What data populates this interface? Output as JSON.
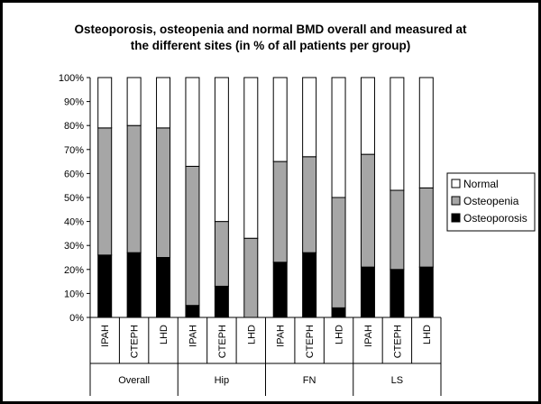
{
  "chart_data": {
    "type": "bar",
    "stacked": true,
    "percent": true,
    "title_line1": "Osteoporosis, osteopenia and normal BMD overall and measured at",
    "title_line2": "the different sites (in % of all patients per group)",
    "ylim": [
      0,
      100
    ],
    "yticks": [
      "0%",
      "10%",
      "20%",
      "30%",
      "40%",
      "50%",
      "60%",
      "70%",
      "80%",
      "90%",
      "100%"
    ],
    "groups": [
      {
        "name": "Overall",
        "categories": [
          "IPAH",
          "CTEPH",
          "LHD"
        ]
      },
      {
        "name": "Hip",
        "categories": [
          "IPAH",
          "CTEPH",
          "LHD"
        ]
      },
      {
        "name": "FN",
        "categories": [
          "IPAH",
          "CTEPH",
          "LHD"
        ]
      },
      {
        "name": "LS",
        "categories": [
          "IPAH",
          "CTEPH",
          "LHD"
        ]
      }
    ],
    "series": [
      {
        "name": "Osteoporosis",
        "color": "#000000",
        "values": [
          26,
          27,
          25,
          5,
          13,
          0,
          23,
          27,
          4,
          21,
          20,
          21
        ]
      },
      {
        "name": "Osteopenia",
        "color": "#a6a6a6",
        "values": [
          53,
          53,
          54,
          58,
          27,
          33,
          42,
          40,
          46,
          47,
          33,
          33
        ]
      },
      {
        "name": "Normal",
        "color": "#ffffff",
        "values": [
          21,
          20,
          21,
          37,
          60,
          67,
          35,
          33,
          50,
          32,
          47,
          46
        ]
      }
    ],
    "legend": {
      "position": "right",
      "order": [
        "Normal",
        "Osteopenia",
        "Osteoporosis"
      ]
    },
    "grid": false
  }
}
